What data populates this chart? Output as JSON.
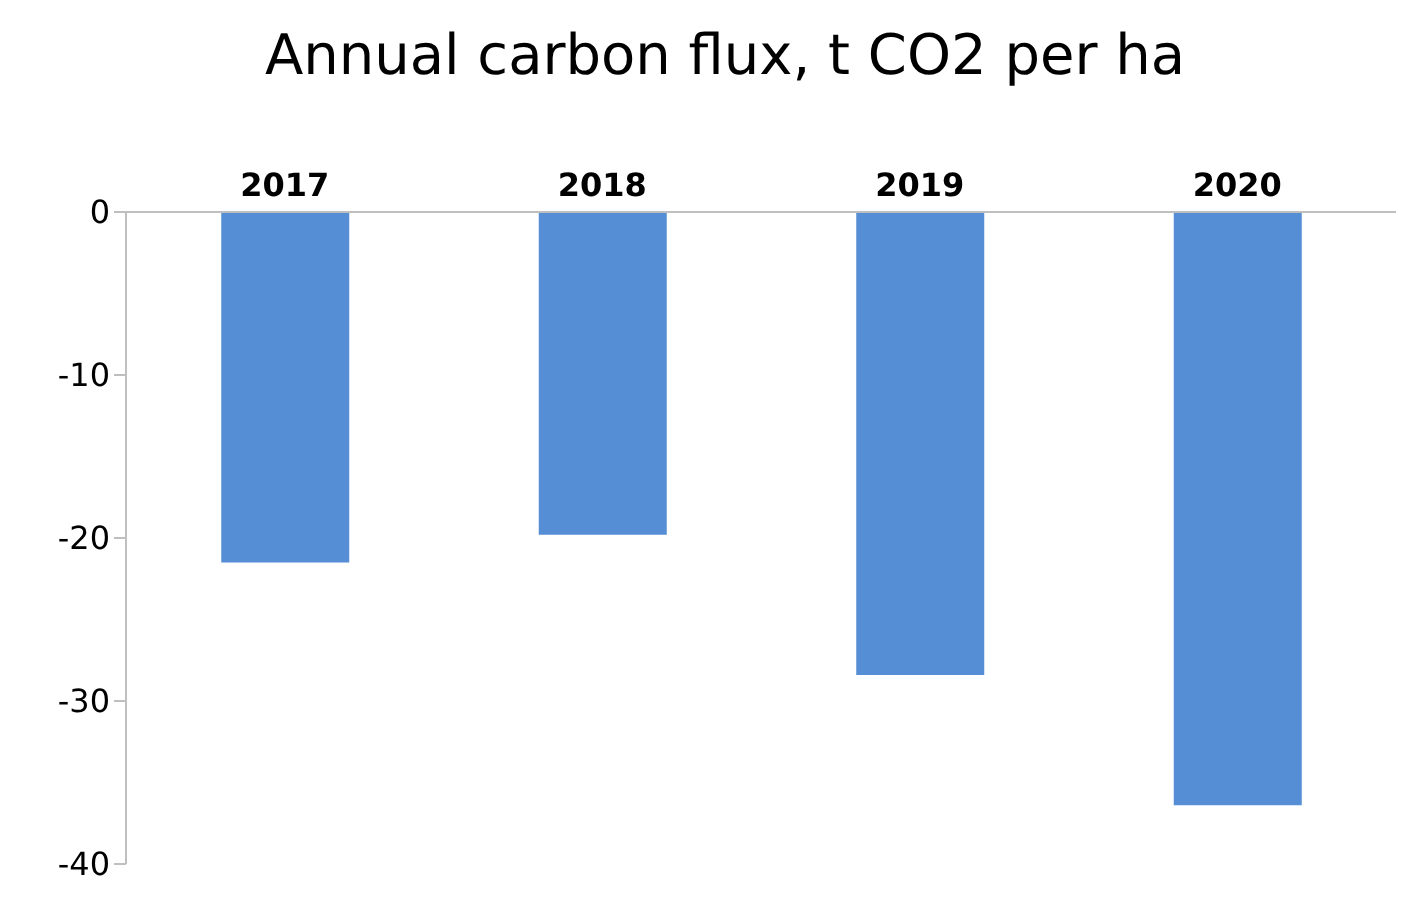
{
  "chart_data": {
    "type": "bar",
    "title": "Annual carbon flux, t CO2 per ha",
    "categories": [
      "2017",
      "2018",
      "2019",
      "2020"
    ],
    "values": [
      -21.5,
      -19.8,
      -28.4,
      -36.4
    ],
    "color": "#558ed5",
    "ylim": [
      -40,
      0
    ],
    "yticks": [
      -40,
      -30,
      -20,
      -10,
      0
    ],
    "grid": false
  }
}
